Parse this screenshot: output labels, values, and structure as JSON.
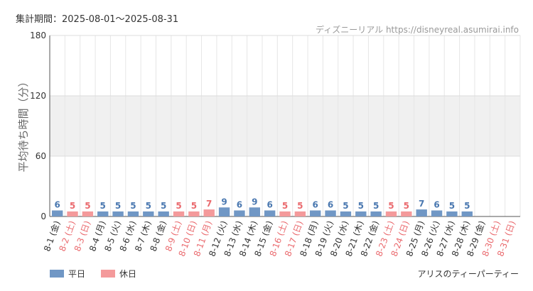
{
  "header": {
    "period": "集計期間：2025-08-01～2025-08-31",
    "credit": "ディズニーリアル https://disneyreal.asumirai.info"
  },
  "footer": {
    "attraction": "アリスのティーパーティー"
  },
  "colors": {
    "weekday": "#7097c5",
    "holiday": "#f49a9b",
    "weekday_text": "#4a78b0",
    "holiday_text": "#ea6a6e",
    "band": "#f0f0f0",
    "grid": "#e6e6e6"
  },
  "chart_data": {
    "type": "bar",
    "ylabel": "平均待ち時間（分）",
    "ylim": [
      0,
      180
    ],
    "yticks": [
      0,
      60,
      120,
      180
    ],
    "legend": [
      {
        "name": "平日",
        "kind": "weekday"
      },
      {
        "name": "休日",
        "kind": "holiday"
      }
    ],
    "categories": [
      "8-1 (金)",
      "8-2 (土)",
      "8-3 (日)",
      "8-4 (月)",
      "8-5 (火)",
      "8-6 (水)",
      "8-7 (木)",
      "8-8 (金)",
      "8-9 (土)",
      "8-10 (日)",
      "8-11 (月)",
      "8-12 (火)",
      "8-13 (水)",
      "8-14 (木)",
      "8-15 (金)",
      "8-16 (土)",
      "8-17 (日)",
      "8-18 (月)",
      "8-19 (火)",
      "8-20 (水)",
      "8-21 (木)",
      "8-22 (金)",
      "8-23 (土)",
      "8-24 (日)",
      "8-25 (月)",
      "8-26 (火)",
      "8-27 (水)",
      "8-28 (木)",
      "8-29 (金)",
      "8-30 (土)",
      "8-31 (日)"
    ],
    "kinds": [
      "weekday",
      "holiday",
      "holiday",
      "weekday",
      "weekday",
      "weekday",
      "weekday",
      "weekday",
      "holiday",
      "holiday",
      "holiday",
      "weekday",
      "weekday",
      "weekday",
      "weekday",
      "holiday",
      "holiday",
      "weekday",
      "weekday",
      "weekday",
      "weekday",
      "weekday",
      "holiday",
      "holiday",
      "weekday",
      "weekday",
      "weekday",
      "weekday",
      "weekday",
      "holiday",
      "holiday"
    ],
    "values": [
      6,
      5,
      5,
      5,
      5,
      5,
      5,
      5,
      5,
      5,
      7,
      9,
      6,
      9,
      6,
      5,
      5,
      6,
      6,
      5,
      5,
      5,
      5,
      5,
      7,
      6,
      5,
      5,
      null,
      null,
      null
    ],
    "bands": [
      [
        60,
        120
      ]
    ],
    "grid": true
  }
}
